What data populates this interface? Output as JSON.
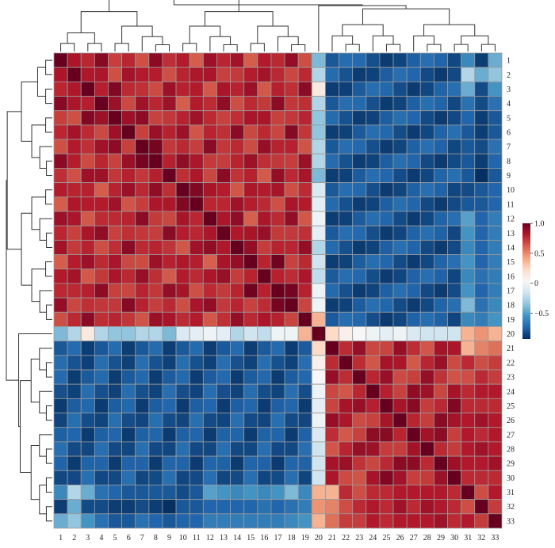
{
  "chart_data": {
    "type": "heatmap",
    "title": "",
    "xlabel": "",
    "ylabel": "",
    "row_labels": [
      "1",
      "2",
      "3",
      "4",
      "5",
      "6",
      "7",
      "8",
      "9",
      "10",
      "11",
      "12",
      "13",
      "14",
      "15",
      "16",
      "17",
      "18",
      "19",
      "20",
      "21",
      "22",
      "23",
      "24",
      "25",
      "26",
      "27",
      "28",
      "29",
      "30",
      "31",
      "32",
      "33"
    ],
    "col_labels": [
      "1",
      "2",
      "3",
      "4",
      "5",
      "6",
      "7",
      "8",
      "9",
      "10",
      "11",
      "12",
      "13",
      "14",
      "15",
      "16",
      "17",
      "18",
      "19",
      "20",
      "21",
      "22",
      "23",
      "24",
      "25",
      "26",
      "27",
      "28",
      "29",
      "30",
      "31",
      "32",
      "33"
    ],
    "value_range": [
      -1,
      1
    ],
    "colormap": [
      "#053061",
      "#2166ac",
      "#4393c3",
      "#92c5de",
      "#d1e5f0",
      "#f7f7f7",
      "#fddbc7",
      "#f4a582",
      "#d6604d",
      "#b2182b",
      "#67001f"
    ],
    "grid_color": "#9a9a9a",
    "colorbar": {
      "position": "right",
      "ticks": [
        1.0,
        0.5,
        0,
        -0.5
      ],
      "tick_labels": [
        "1.0",
        "0.5",
        "0",
        "−0.5"
      ]
    },
    "dendrograms": {
      "top": true,
      "left": true
    },
    "group_a": [
      1,
      2,
      3,
      4,
      5,
      6,
      7,
      8,
      9,
      10,
      11,
      12,
      13,
      14,
      15,
      16,
      17,
      18,
      19
    ],
    "group_b": [
      21,
      22,
      23,
      24,
      25,
      26,
      27,
      28,
      29,
      30,
      31,
      32,
      33
    ],
    "row_20": [
      -0.45,
      -0.3,
      0.1,
      -0.3,
      -0.4,
      -0.4,
      -0.3,
      -0.3,
      -0.45,
      -0.15,
      -0.1,
      -0.05,
      -0.1,
      -0.3,
      -0.2,
      -0.25,
      -0.05,
      -0.05,
      0.35,
      1.0,
      0.2,
      0.05,
      0.0,
      -0.05,
      -0.1,
      -0.05,
      -0.15,
      -0.2,
      -0.2,
      -0.2,
      0.35,
      0.45,
      0.35
    ],
    "col_31": [
      -0.65,
      -0.3,
      -0.5,
      -0.75,
      -0.8,
      -0.85,
      -0.85,
      -0.85,
      -0.85,
      -0.9,
      -0.85,
      -0.55,
      -0.6,
      -0.65,
      -0.6,
      -0.65,
      -0.6,
      -0.45,
      -0.65,
      0.35,
      0.35,
      0.75,
      0.65,
      0.75,
      0.75,
      0.8,
      0.8,
      0.8,
      0.8,
      0.75,
      1.0,
      0.65,
      0.8
    ],
    "col_32": [
      -0.95,
      -0.5,
      -0.9,
      -0.9,
      -0.95,
      -0.95,
      -0.9,
      -0.95,
      -1.0,
      -0.85,
      -0.85,
      -0.8,
      -0.8,
      -0.8,
      -0.8,
      -0.75,
      -0.8,
      -0.75,
      -0.7,
      0.45,
      0.5,
      0.65,
      0.75,
      0.8,
      0.75,
      0.85,
      0.75,
      0.85,
      0.8,
      0.75,
      0.65,
      1.0,
      0.7
    ],
    "col_33": [
      -0.5,
      -0.4,
      -0.6,
      -0.75,
      -0.85,
      -0.85,
      -0.75,
      -0.8,
      -0.85,
      -0.8,
      -0.8,
      -0.7,
      -0.7,
      -0.7,
      -0.7,
      -0.7,
      -0.7,
      -0.65,
      -0.6,
      0.35,
      0.55,
      0.7,
      0.7,
      0.8,
      0.75,
      0.8,
      0.8,
      0.8,
      0.85,
      0.75,
      0.8,
      0.7,
      1.0
    ]
  }
}
